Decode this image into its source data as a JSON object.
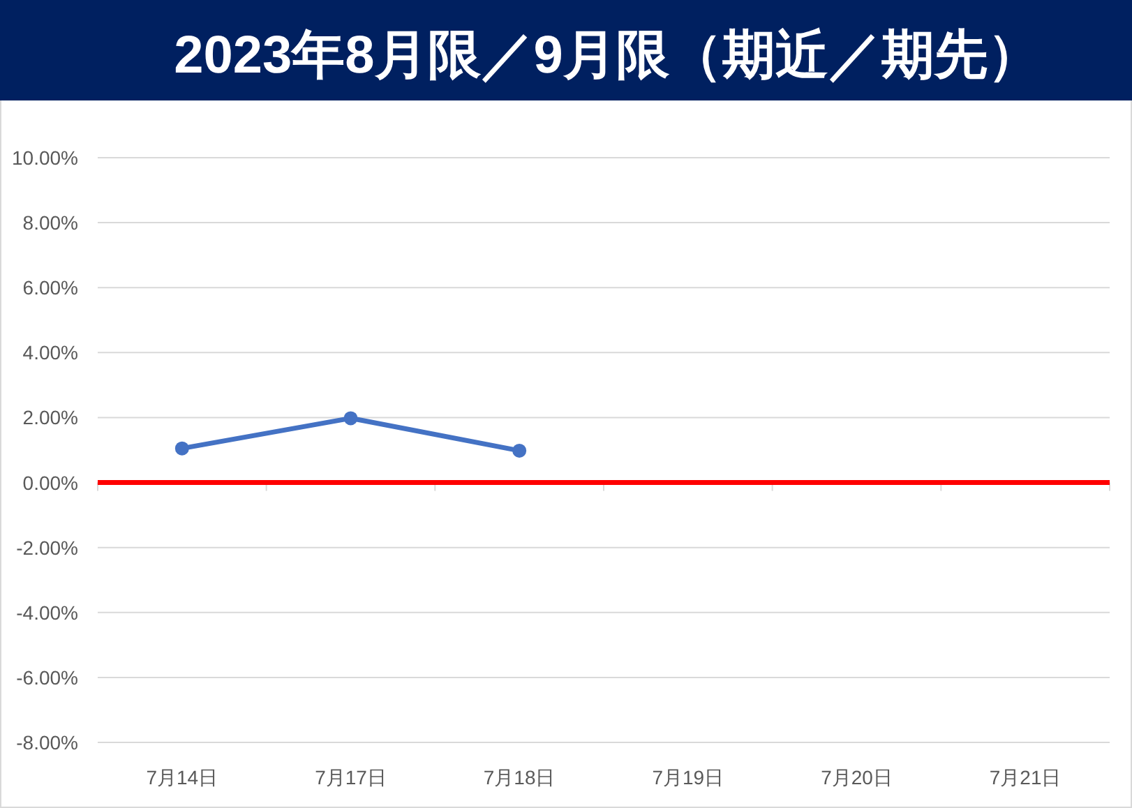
{
  "chart_data": {
    "type": "line",
    "title": "2023年8月限／9月限（期近／期先）",
    "categories": [
      "7月14日",
      "7月17日",
      "7月18日",
      "7月19日",
      "7月20日",
      "7月21日"
    ],
    "series": [
      {
        "color": "#4472c4",
        "values": [
          1.05,
          1.98,
          0.98,
          null,
          null,
          null
        ]
      }
    ],
    "ylim": [
      -8,
      10
    ],
    "yticks": [
      {
        "value": -8,
        "label": "-8.00%"
      },
      {
        "value": -6,
        "label": "-6.00%"
      },
      {
        "value": -4,
        "label": "-4.00%"
      },
      {
        "value": -2,
        "label": "-2.00%"
      },
      {
        "value": 0,
        "label": "0.00%"
      },
      {
        "value": 2,
        "label": "2.00%"
      },
      {
        "value": 4,
        "label": "4.00%"
      },
      {
        "value": 6,
        "label": "6.00%"
      },
      {
        "value": 8,
        "label": "8.00%"
      },
      {
        "value": 10,
        "label": "10.00%"
      }
    ],
    "grid": "y",
    "marker": "circle",
    "ref_lines": [
      {
        "axis": "y",
        "value": 0,
        "color": "#ff0000"
      }
    ]
  }
}
